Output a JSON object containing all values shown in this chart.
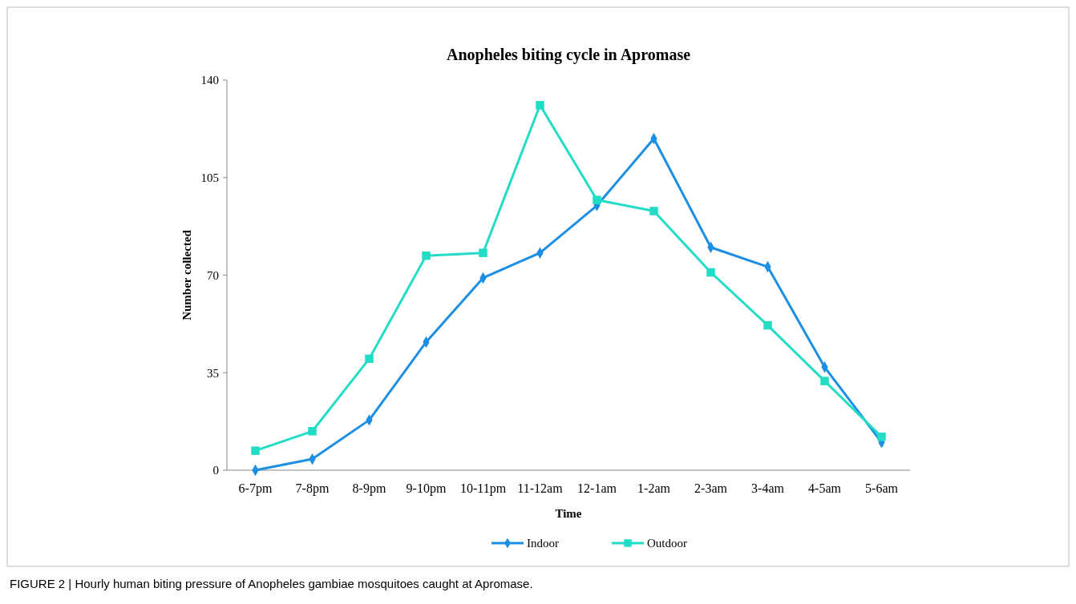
{
  "chart_data": {
    "type": "line",
    "title": "Anopheles biting cycle in Apromase",
    "xlabel": "Time",
    "ylabel": "Number collected",
    "categories": [
      "6-7pm",
      "7-8pm",
      "8-9pm",
      "9-10pm",
      "10-11pm",
      "11-12am",
      "12-1am",
      "1-2am",
      "2-3am",
      "3-4am",
      "4-5am",
      "5-6am"
    ],
    "series": [
      {
        "name": "Indoor",
        "color": "#1b8fe3",
        "marker": "diamond",
        "values": [
          0,
          4,
          18,
          46,
          69,
          78,
          95,
          119,
          80,
          73,
          37,
          10
        ]
      },
      {
        "name": "Outdoor",
        "color": "#22dcc6",
        "marker": "square",
        "values": [
          7,
          14,
          40,
          77,
          78,
          131,
          97,
          93,
          71,
          52,
          32,
          12
        ]
      }
    ],
    "ylim": [
      0,
      140
    ],
    "yticks": [
      0,
      35,
      70,
      105,
      140
    ],
    "grid": false,
    "legend": "bottom",
    "line_style": "solid",
    "annotations": [
      "FIGURE 2 | Hourly human biting pressure of Anopheles gambiae mosquitoes caught at Apromase."
    ]
  }
}
